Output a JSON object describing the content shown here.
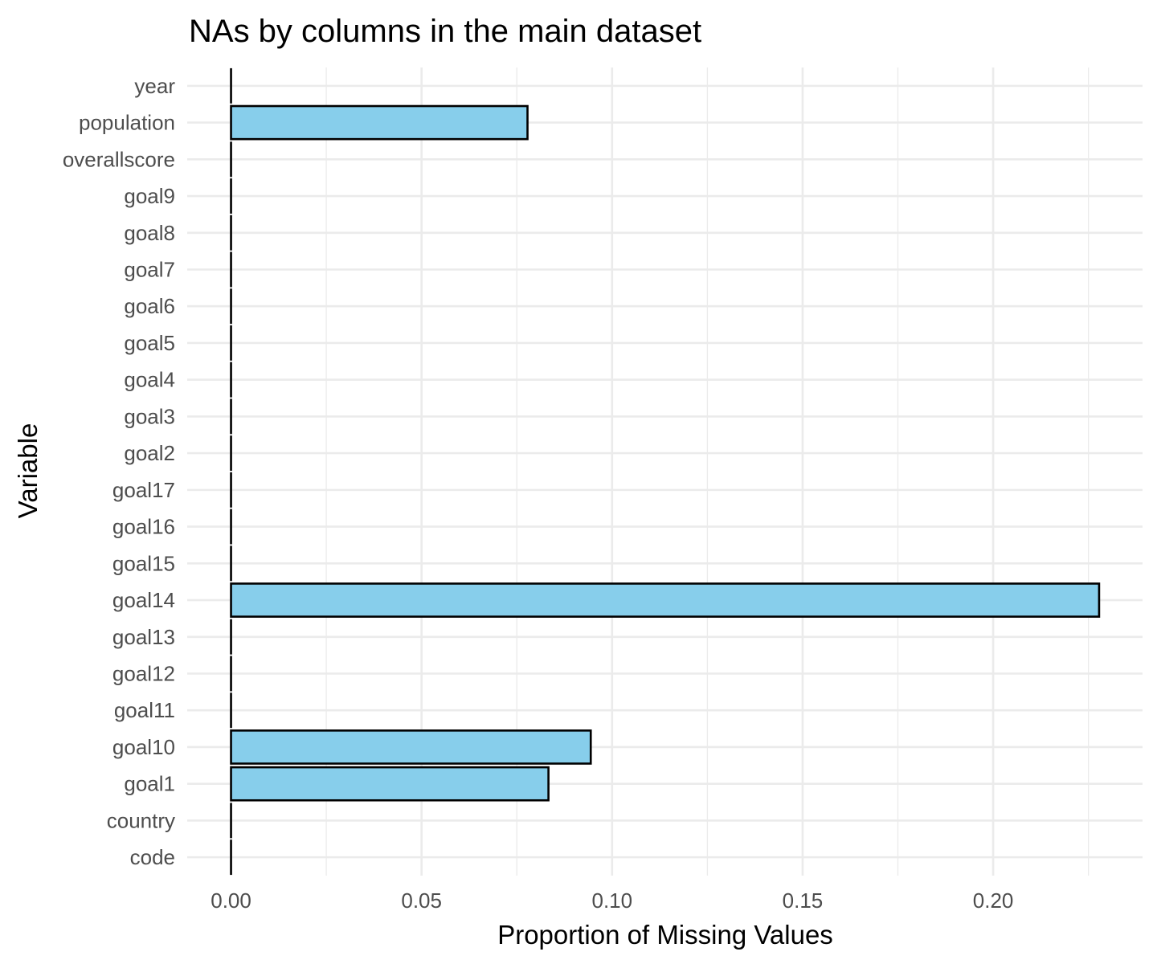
{
  "chart_data": {
    "type": "bar",
    "orientation": "horizontal",
    "title": "NAs by columns in the main dataset",
    "xlabel": "Proportion of Missing Values",
    "ylabel": "Variable",
    "categories": [
      "code",
      "country",
      "goal1",
      "goal10",
      "goal11",
      "goal12",
      "goal13",
      "goal14",
      "goal15",
      "goal16",
      "goal17",
      "goal2",
      "goal3",
      "goal4",
      "goal5",
      "goal6",
      "goal7",
      "goal8",
      "goal9",
      "overallscore",
      "population",
      "year"
    ],
    "values": [
      0,
      0,
      0.0833,
      0.0944,
      0,
      0,
      0,
      0.2278,
      0,
      0,
      0,
      0,
      0,
      0,
      0,
      0,
      0,
      0,
      0,
      0,
      0.0778,
      0
    ],
    "xlim": [
      -0.0115,
      0.2392
    ],
    "x_ticks": [
      0,
      0.05,
      0.1,
      0.15,
      0.2
    ],
    "x_tick_labels": [
      "0.00",
      "0.05",
      "0.10",
      "0.15",
      "0.20"
    ],
    "grid": true,
    "bar_fill": "#87CEEB",
    "bar_outline": "#000000",
    "gridline_color": "#ebebeb",
    "legend": "none"
  }
}
